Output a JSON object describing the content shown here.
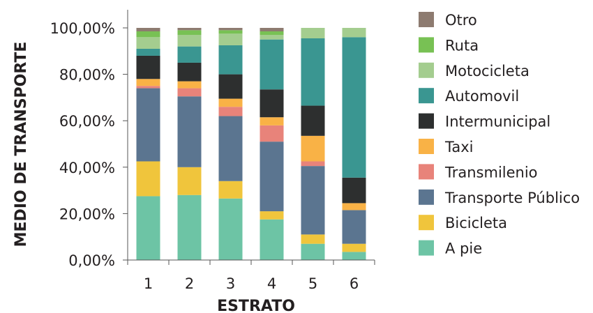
{
  "chart_data": {
    "type": "bar",
    "stacked": true,
    "title": "",
    "xlabel": "ESTRATO",
    "ylabel": "MEDIO DE TRANSPORTE",
    "ylim": [
      0,
      100
    ],
    "yticks": [
      "0,00%",
      "20,00%",
      "40,00%",
      "60,00%",
      "80,00%",
      "100,00%"
    ],
    "ytick_values": [
      0,
      20,
      40,
      60,
      80,
      100
    ],
    "categories": [
      "1",
      "2",
      "3",
      "4",
      "5",
      "6"
    ],
    "legend_position": "right",
    "grid": false,
    "series": [
      {
        "name": "A pie",
        "color": "#6dc4a5",
        "values": [
          27.5,
          28,
          26.5,
          17.5,
          7,
          3.5
        ]
      },
      {
        "name": "Bicicleta",
        "color": "#f0c53c",
        "values": [
          15,
          12,
          7.5,
          3.5,
          4,
          3.5
        ]
      },
      {
        "name": "Transporte Público",
        "color": "#5b7590",
        "values": [
          31.5,
          30.5,
          28,
          30,
          29.5,
          14.5
        ]
      },
      {
        "name": "Transmilenio",
        "color": "#e8837a",
        "values": [
          1,
          3.5,
          4,
          7,
          2,
          0
        ]
      },
      {
        "name": "Taxi",
        "color": "#f9b246",
        "values": [
          3,
          3,
          3.5,
          3.5,
          11,
          3
        ]
      },
      {
        "name": "Intermunicipal",
        "color": "#2d2f2f",
        "values": [
          10,
          8,
          10.5,
          12,
          13,
          11
        ]
      },
      {
        "name": "Automovil",
        "color": "#3a9691",
        "values": [
          3,
          7,
          12.5,
          21.5,
          29,
          60.5
        ]
      },
      {
        "name": "Motocicleta",
        "color": "#a4cd8f",
        "values": [
          5,
          5,
          5,
          2,
          4.5,
          4
        ]
      },
      {
        "name": "Ruta",
        "color": "#78c154",
        "values": [
          2.5,
          2,
          1.5,
          1.5,
          0,
          0
        ]
      },
      {
        "name": "Otro",
        "color": "#8d7b70",
        "values": [
          1.5,
          1,
          1,
          1.5,
          0,
          0
        ]
      }
    ],
    "legend_order": [
      "Otro",
      "Ruta",
      "Motocicleta",
      "Automovil",
      "Intermunicipal",
      "Taxi",
      "Transmilenio",
      "Transporte Público",
      "Bicicleta",
      "A pie"
    ]
  }
}
